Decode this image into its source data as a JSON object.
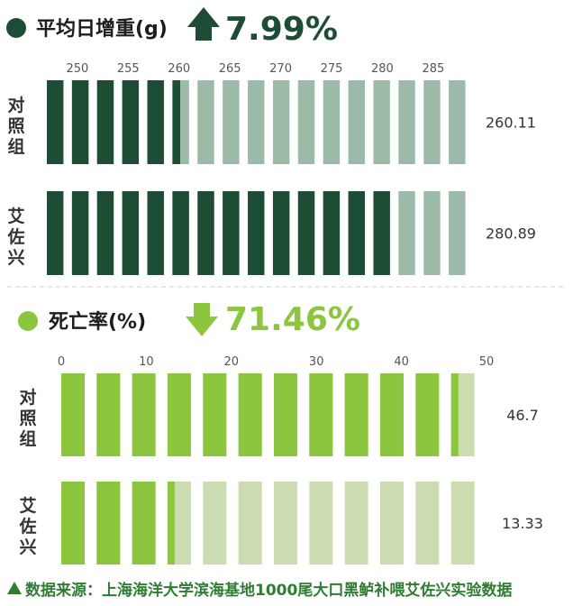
{
  "chart_data": [
    {
      "type": "bar",
      "title": "平均日增重(g)",
      "change": {
        "direction": "up",
        "label": "7.99%"
      },
      "xlim": [
        247,
        289
      ],
      "ticks": [
        "250",
        "255",
        "260",
        "265",
        "270",
        "275",
        "280",
        "285"
      ],
      "tick_values": [
        250,
        255,
        260,
        265,
        270,
        275,
        280,
        285
      ],
      "categories": [
        "对照组",
        "艾佐兴"
      ],
      "values": [
        260.11,
        280.89
      ],
      "value_labels": [
        "260.11",
        "280.89"
      ],
      "colors": {
        "filled": "#1d4d35",
        "empty": "#9bbba8",
        "bullet": "#1d4d35",
        "arrow": "#1d4d35",
        "change_text": "#1d4d35"
      }
    },
    {
      "type": "bar",
      "title": "死亡率(%)",
      "change": {
        "direction": "down",
        "label": "71.46%"
      },
      "xlim": [
        0,
        50
      ],
      "ticks": [
        "0",
        "10",
        "20",
        "30",
        "40",
        "50"
      ],
      "tick_values": [
        0,
        10,
        20,
        30,
        40,
        50
      ],
      "categories": [
        "对照组",
        "艾佐兴"
      ],
      "values": [
        46.7,
        13.33
      ],
      "value_labels": [
        "46.7",
        "13.33"
      ],
      "colors": {
        "filled": "#8cc63f",
        "empty": "#cbdcb0",
        "bullet": "#8cc63f",
        "arrow": "#8cc63f",
        "change_text": "#8cc63f"
      }
    }
  ],
  "source": "数据来源：上海海洋大学滨海基地1000尾大口黑鲈补喂艾佐兴实验数据",
  "colors": {
    "source_text": "#2e7d32",
    "divider": "#cccccc"
  }
}
